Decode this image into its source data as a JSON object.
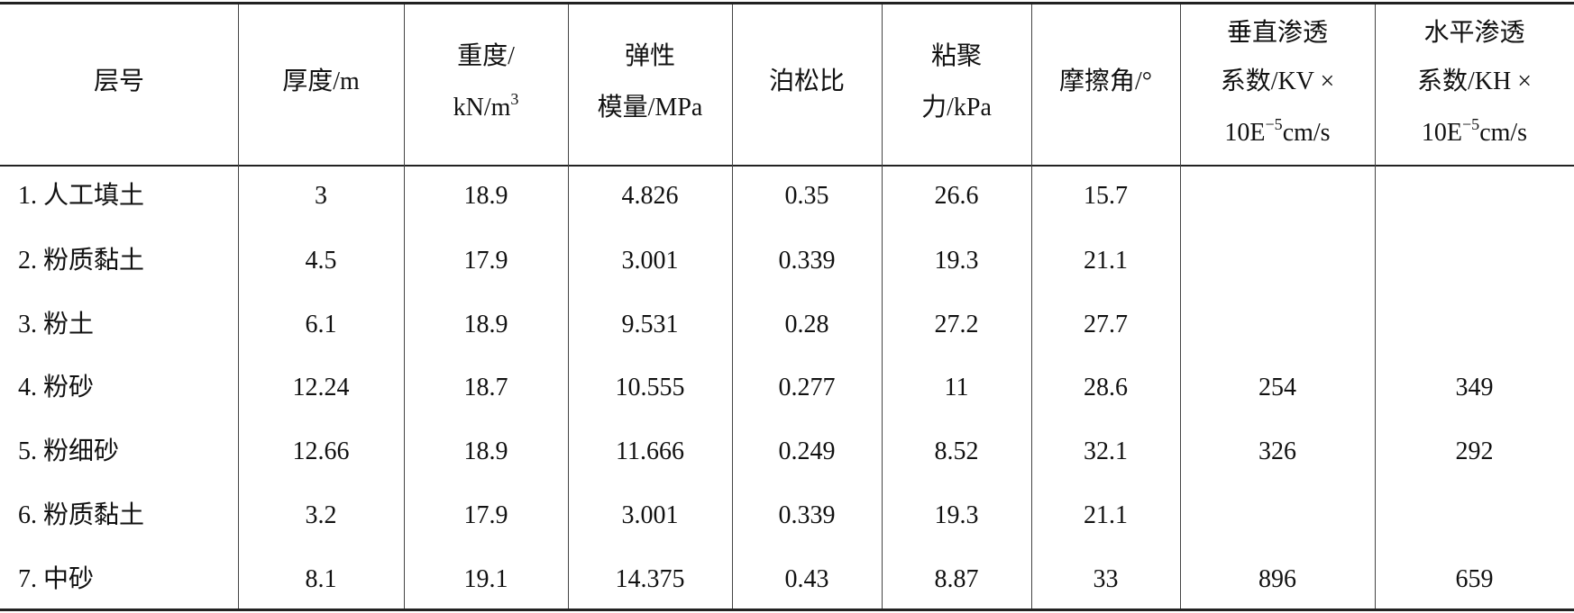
{
  "table": {
    "header": [
      {
        "lines": [
          [
            "层号"
          ]
        ]
      },
      {
        "lines": [
          [
            "厚度/m"
          ]
        ]
      },
      {
        "lines": [
          [
            "重度/"
          ],
          [
            "kN/m",
            {
              "sup": "3"
            }
          ]
        ]
      },
      {
        "lines": [
          [
            "弹性"
          ],
          [
            "模量/MPa"
          ]
        ]
      },
      {
        "lines": [
          [
            "泊松比"
          ]
        ]
      },
      {
        "lines": [
          [
            "粘聚"
          ],
          [
            "力/kPa"
          ]
        ]
      },
      {
        "lines": [
          [
            "摩擦角/°"
          ]
        ]
      },
      {
        "lines": [
          [
            "垂直渗透"
          ],
          [
            "系数/KV ×"
          ],
          [
            "10E",
            {
              "sup": "−5"
            },
            "cm/s"
          ]
        ]
      },
      {
        "lines": [
          [
            "水平渗透"
          ],
          [
            "系数/KH ×"
          ],
          [
            "10E",
            {
              "sup": "−5"
            },
            "cm/s"
          ]
        ]
      }
    ],
    "rows": [
      [
        "1. 人工填土",
        "3",
        "18.9",
        "4.826",
        "0.35",
        "26.6",
        "15.7",
        null,
        null
      ],
      [
        "2. 粉质黏土",
        "4.5",
        "17.9",
        "3.001",
        "0.339",
        "19.3",
        "21.1",
        null,
        null
      ],
      [
        "3. 粉土",
        "6.1",
        "18.9",
        "9.531",
        "0.28",
        "27.2",
        "27.7",
        null,
        null
      ],
      [
        "4. 粉砂",
        "12.24",
        "18.7",
        "10.555",
        "0.277",
        "11",
        "28.6",
        "254",
        "349"
      ],
      [
        "5. 粉细砂",
        "12.66",
        "18.9",
        "11.666",
        "0.249",
        "8.52",
        "32.1",
        "326",
        "292"
      ],
      [
        "6. 粉质黏土",
        "3.2",
        "17.9",
        "3.001",
        "0.339",
        "19.3",
        "21.1",
        null,
        null
      ],
      [
        "7. 中砂",
        "8.1",
        "19.1",
        "14.375",
        "0.43",
        "8.87",
        "33",
        "896",
        "659"
      ]
    ]
  }
}
